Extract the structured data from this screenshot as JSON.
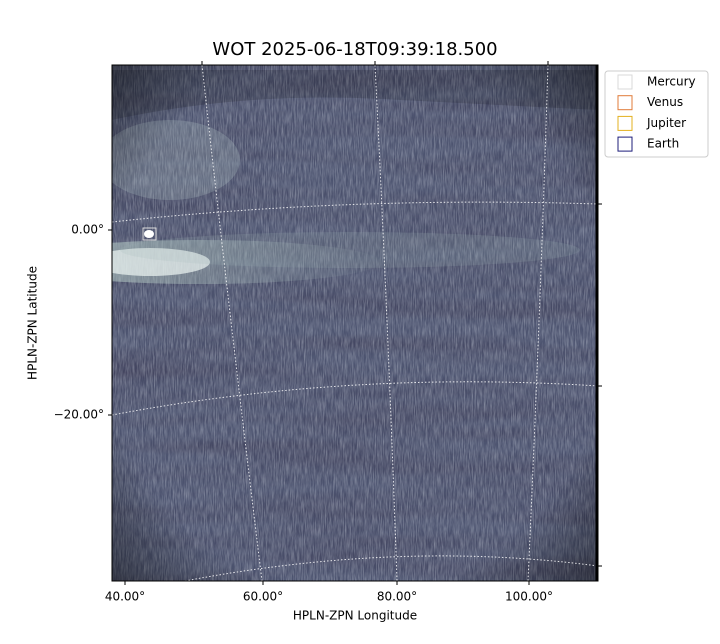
{
  "title": "WOT 2025-06-18T09:39:18.500",
  "x_axis": {
    "label": "HPLN-ZPN Longitude",
    "ticks": [
      "40.00°",
      "60.00°",
      "80.00°",
      "100.00°"
    ]
  },
  "y_axis": {
    "label": "HPLN-ZPN Latitude",
    "ticks": [
      "0.00°",
      "−20.00°"
    ]
  },
  "legend": [
    {
      "name": "Mercury",
      "color": "#d9d9d9"
    },
    {
      "name": "Venus",
      "color": "#e07b39"
    },
    {
      "name": "Jupiter",
      "color": "#e3b01f"
    },
    {
      "name": "Earth",
      "color": "#1c1c7a"
    }
  ]
}
